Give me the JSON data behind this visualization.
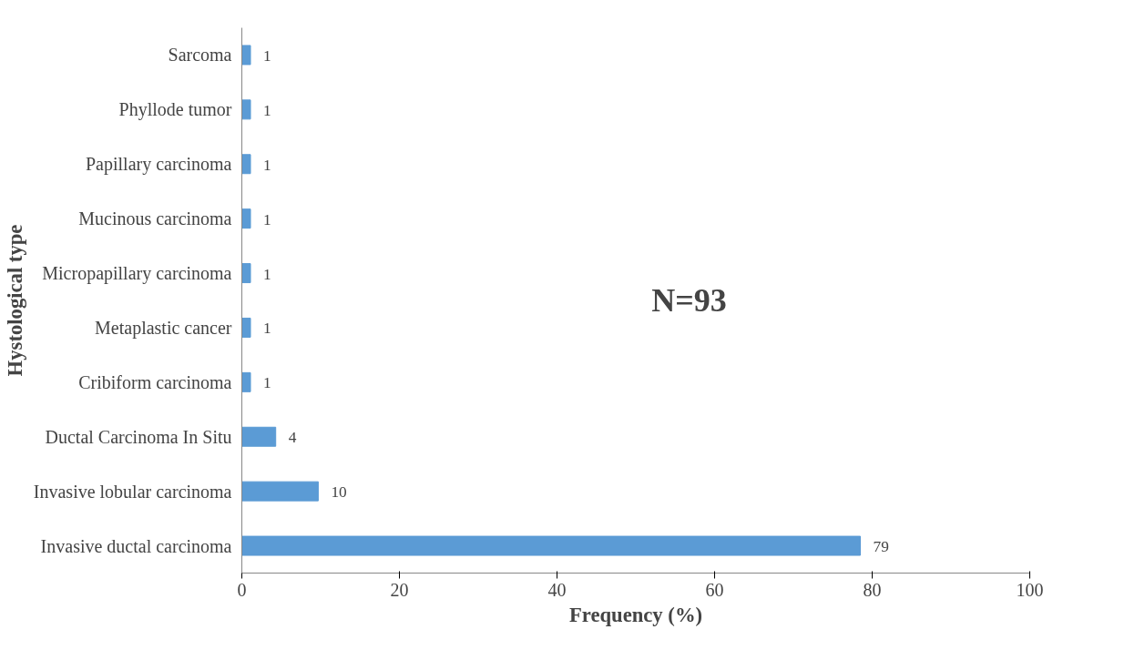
{
  "chart_data": {
    "type": "bar",
    "orientation": "horizontal",
    "xlabel": "Frequency (%)",
    "ylabel": "Hystological type",
    "categories": [
      "Sarcoma",
      "Phyllode tumor",
      "Papillary carcinoma",
      "Mucinous carcinoma",
      "Micropapillary carcinoma",
      "Metaplastic cancer",
      "Cribiform carcinoma",
      "Ductal Carcinoma In Situ",
      "Invasive lobular carcinoma",
      "Invasive ductal carcinoma"
    ],
    "values": [
      1.1,
      1.1,
      1.1,
      1.1,
      1.1,
      1.1,
      1.1,
      4.3,
      9.7,
      78.5
    ],
    "value_labels": [
      "1",
      "1",
      "1",
      "1",
      "1",
      "1",
      "1",
      "4",
      "10",
      "79"
    ],
    "color": "#5b9bd5",
    "xlim": [
      0,
      100
    ],
    "xticks": [
      0,
      20,
      40,
      60,
      80,
      100
    ],
    "grid": false,
    "annotations": [
      "N=93"
    ]
  }
}
